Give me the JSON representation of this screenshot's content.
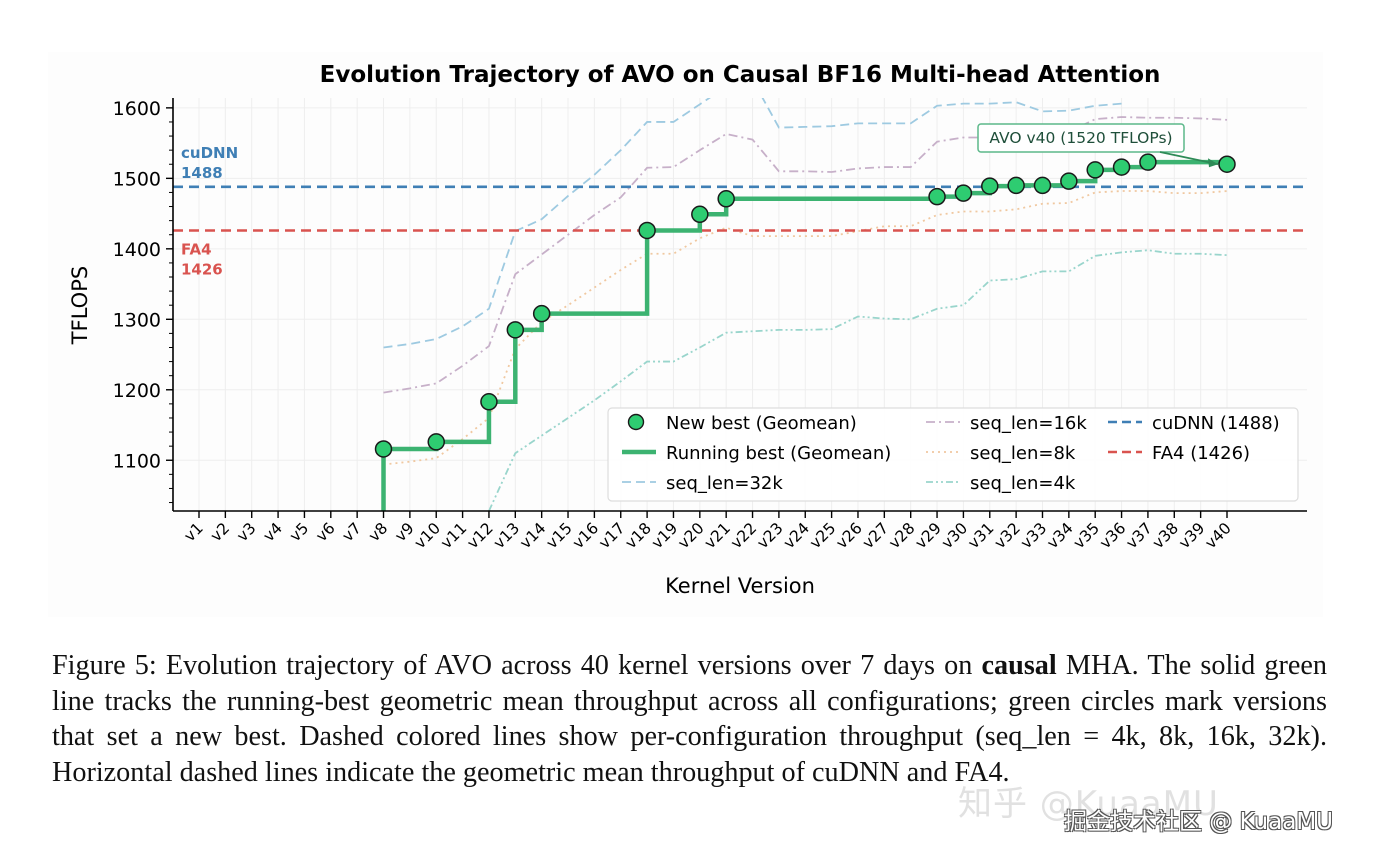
{
  "chart_data": {
    "type": "line",
    "title": "Evolution Trajectory of AVO on Causal BF16 Multi-head Attention",
    "xlabel": "Kernel Version",
    "ylabel": "TFLOPS",
    "categories": [
      "v1",
      "v2",
      "v3",
      "v4",
      "v5",
      "v6",
      "v7",
      "v8",
      "v9",
      "v10",
      "v11",
      "v12",
      "v13",
      "v14",
      "v15",
      "v16",
      "v17",
      "v18",
      "v19",
      "v20",
      "v21",
      "v22",
      "v23",
      "v24",
      "v25",
      "v26",
      "v27",
      "v28",
      "v29",
      "v30",
      "v31",
      "v32",
      "v33",
      "v34",
      "v35",
      "v36",
      "v37",
      "v38",
      "v39",
      "v40"
    ],
    "ylim": [
      1028,
      1614
    ],
    "yticks": [
      1100,
      1200,
      1300,
      1400,
      1500,
      1600
    ],
    "grid": true,
    "legend_position": "lower-right",
    "new_best": {
      "name": "New best (Geomean)",
      "color": "#2ecc71",
      "points": [
        {
          "x": "v8",
          "y": 1116
        },
        {
          "x": "v10",
          "y": 1126
        },
        {
          "x": "v12",
          "y": 1183
        },
        {
          "x": "v13",
          "y": 1285
        },
        {
          "x": "v14",
          "y": 1308
        },
        {
          "x": "v18",
          "y": 1426
        },
        {
          "x": "v20",
          "y": 1449
        },
        {
          "x": "v21",
          "y": 1471
        },
        {
          "x": "v29",
          "y": 1474
        },
        {
          "x": "v30",
          "y": 1479
        },
        {
          "x": "v31",
          "y": 1489
        },
        {
          "x": "v32",
          "y": 1490
        },
        {
          "x": "v33",
          "y": 1490
        },
        {
          "x": "v34",
          "y": 1496
        },
        {
          "x": "v35",
          "y": 1512
        },
        {
          "x": "v36",
          "y": 1516
        },
        {
          "x": "v37",
          "y": 1523
        },
        {
          "x": "v40",
          "y": 1520
        }
      ]
    },
    "running_best": {
      "name": "Running best (Geomean)",
      "color": "#3cb371",
      "start_x": "v8",
      "end_x": "v40"
    },
    "series": [
      {
        "name": "seq_len=32k",
        "color": "#9ecae1",
        "dash": "dashed",
        "x": [
          "v8",
          "v9",
          "v10",
          "v11",
          "v12",
          "v13",
          "v14",
          "v15",
          "v16",
          "v17",
          "v18",
          "v19",
          "v20",
          "v21",
          "v22",
          "v23",
          "v24",
          "v25",
          "v26",
          "v27",
          "v28",
          "v29",
          "v30",
          "v31",
          "v32",
          "v33",
          "v34",
          "v35",
          "v36"
        ],
        "values": [
          1260,
          1265,
          1272,
          1290,
          1315,
          1425,
          1442,
          1475,
          1505,
          1540,
          1580,
          1580,
          1605,
          1630,
          1640,
          1572,
          1573,
          1574,
          1578,
          1578,
          1578,
          1603,
          1606,
          1606,
          1608,
          1595,
          1596,
          1603,
          1606
        ]
      },
      {
        "name": "seq_len=16k",
        "color": "#c7b0c9",
        "dash": "dashdot",
        "x": [
          "v8",
          "v9",
          "v10",
          "v11",
          "v12",
          "v13",
          "v14",
          "v15",
          "v16",
          "v17",
          "v18",
          "v19",
          "v20",
          "v21",
          "v22",
          "v23",
          "v24",
          "v25",
          "v26",
          "v27",
          "v28",
          "v29",
          "v30",
          "v31",
          "v32",
          "v33",
          "v34",
          "v35",
          "v36",
          "v37",
          "v38",
          "v39",
          "v40"
        ],
        "values": [
          1196,
          1202,
          1209,
          1234,
          1262,
          1364,
          1392,
          1420,
          1448,
          1473,
          1515,
          1516,
          1540,
          1563,
          1555,
          1510,
          1510,
          1509,
          1514,
          1516,
          1516,
          1552,
          1558,
          1558,
          1560,
          1563,
          1566,
          1584,
          1587,
          1586,
          1586,
          1585,
          1583
        ]
      },
      {
        "name": "seq_len=8k",
        "color": "#f0c8a0",
        "dash": "dotted",
        "x": [
          "v8",
          "v9",
          "v10",
          "v11",
          "v12",
          "v13",
          "v14",
          "v15",
          "v16",
          "v17",
          "v18",
          "v19",
          "v20",
          "v21",
          "v22",
          "v23",
          "v24",
          "v25",
          "v26",
          "v27",
          "v28",
          "v29",
          "v30",
          "v31",
          "v32",
          "v33",
          "v34",
          "v35",
          "v36",
          "v37",
          "v38",
          "v39",
          "v40"
        ],
        "values": [
          1094,
          1098,
          1103,
          1130,
          1160,
          1258,
          1296,
          1320,
          1345,
          1370,
          1393,
          1393,
          1415,
          1430,
          1418,
          1418,
          1418,
          1418,
          1425,
          1432,
          1432,
          1448,
          1453,
          1453,
          1456,
          1464,
          1465,
          1480,
          1482,
          1482,
          1479,
          1479,
          1482
        ]
      },
      {
        "name": "seq_len=4k",
        "color": "#99d5cc",
        "dash": "dashdotdot",
        "x": [
          "v12",
          "v13",
          "v14",
          "v15",
          "v16",
          "v17",
          "v18",
          "v19",
          "v20",
          "v21",
          "v22",
          "v23",
          "v24",
          "v25",
          "v26",
          "v27",
          "v28",
          "v29",
          "v30",
          "v31",
          "v32",
          "v33",
          "v34",
          "v35",
          "v36",
          "v37",
          "v38",
          "v39",
          "v40"
        ],
        "values": [
          1028,
          1110,
          1135,
          1160,
          1185,
          1212,
          1240,
          1240,
          1260,
          1281,
          1283,
          1285,
          1285,
          1286,
          1304,
          1301,
          1300,
          1315,
          1320,
          1355,
          1357,
          1368,
          1368,
          1390,
          1395,
          1398,
          1393,
          1393,
          1391
        ]
      }
    ],
    "reference_lines": [
      {
        "name": "cuDNN (1488)",
        "label_line1": "cuDNN",
        "label_line2": "1488",
        "value": 1488,
        "color": "#3f7fb5"
      },
      {
        "name": "FA4 (1426)",
        "label_line1": "FA4",
        "label_line2": "1426",
        "value": 1426,
        "color": "#d9534f"
      }
    ],
    "annotation": {
      "text": "AVO v40 (1520 TFLOPs)",
      "target_x": "v40",
      "target_y": 1520,
      "color": "#2e8b57"
    },
    "legend": [
      "New best (Geomean)",
      "Running best (Geomean)",
      "seq_len=32k",
      "seq_len=16k",
      "seq_len=8k",
      "seq_len=4k",
      "cuDNN (1488)",
      "FA4 (1426)"
    ]
  },
  "caption": {
    "part1": "Figure 5: Evolution trajectory of AVO across 40 kernel versions over 7 days on ",
    "bold": "causal",
    "part2": " MHA. The solid green line tracks the running-best geometric mean throughput across all configurations; green circles mark versions that set a new best. Dashed colored lines show per-configuration throughput (seq_len = 4k, 8k, 16k, 32k). Horizontal dashed lines indicate the geometric mean throughput of cuDNN and FA4."
  },
  "watermarks": {
    "zhihu": "知乎 @KuaaMU",
    "juejin": "掘金技术社区 @ KuaaMU"
  }
}
